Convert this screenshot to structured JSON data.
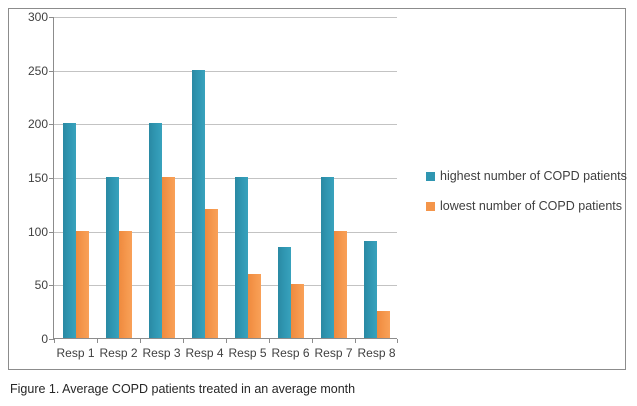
{
  "chart_data": {
    "type": "bar",
    "title": "",
    "caption": "Figure 1. Average COPD patients treated in an average month",
    "categories": [
      "Resp 1",
      "Resp 2",
      "Resp 3",
      "Resp 4",
      "Resp 5",
      "Resp 6",
      "Resp 7",
      "Resp 8"
    ],
    "series": [
      {
        "name": "highest number of COPD patients",
        "color": "#2F96B1",
        "values": [
          200,
          150,
          200,
          250,
          150,
          85,
          150,
          90
        ]
      },
      {
        "name": "lowest number of COPD patients",
        "color": "#F4954A",
        "values": [
          100,
          100,
          150,
          120,
          60,
          50,
          100,
          25
        ]
      }
    ],
    "ylim": [
      0,
      300
    ],
    "yticks": [
      0,
      50,
      100,
      150,
      200,
      250,
      300
    ],
    "grid": true,
    "legend_position": "right"
  },
  "colors": {
    "series_highest": "#2F96B1",
    "series_lowest": "#F4954A",
    "gridline": "#C3C3C3",
    "axis": "#8C8C8C",
    "frame_border": "#8C8C8C",
    "text": "#404040"
  }
}
